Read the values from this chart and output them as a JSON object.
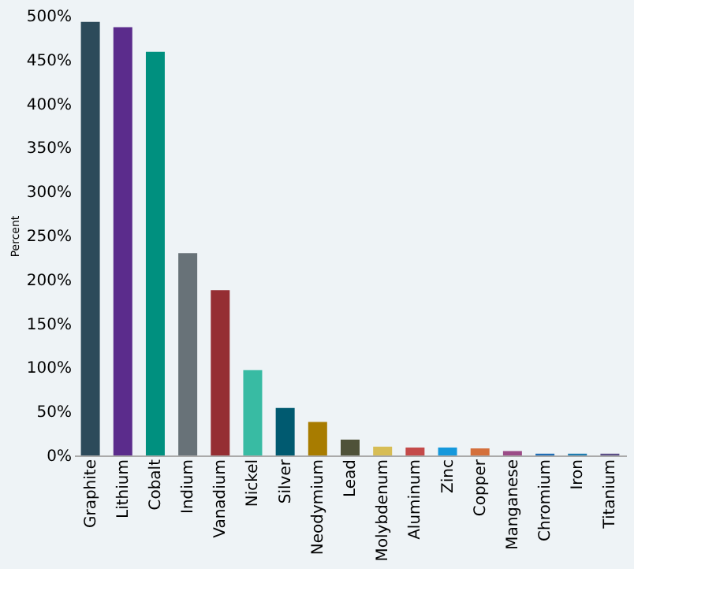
{
  "chart_data": {
    "type": "bar",
    "ylabel": "Percent",
    "categories": [
      "Graphite",
      "Lithium",
      "Cobalt",
      "Indium",
      "Vanadium",
      "Nickel",
      "Silver",
      "Neodymium",
      "Lead",
      "Molybdenum",
      "Aluminum",
      "Zinc",
      "Copper",
      "Manganese",
      "Chromium",
      "Iron",
      "Titanium"
    ],
    "values": [
      493,
      487,
      459,
      230,
      188,
      97,
      54,
      38,
      18,
      10,
      9,
      9,
      8,
      5,
      2,
      2,
      2
    ],
    "colors": [
      "#2c4a5a",
      "#5b2c8c",
      "#00907f",
      "#687278",
      "#952e33",
      "#38bba3",
      "#005a70",
      "#a87c00",
      "#4f5239",
      "#d7bd55",
      "#c44a4a",
      "#1598dc",
      "#d4703c",
      "#9b4b87",
      "#1f6db5",
      "#1e7cb0",
      "#5b4f87"
    ],
    "ylim": [
      0,
      500
    ],
    "yticks": [
      {
        "value": 0,
        "label": "0%"
      },
      {
        "value": 50,
        "label": "50%"
      },
      {
        "value": 100,
        "label": "100%"
      },
      {
        "value": 150,
        "label": "150%"
      },
      {
        "value": 200,
        "label": "200%"
      },
      {
        "value": 250,
        "label": "250%"
      },
      {
        "value": 300,
        "label": "300%"
      },
      {
        "value": 350,
        "label": "350%"
      },
      {
        "value": 400,
        "label": "400%"
      },
      {
        "value": 450,
        "label": "450%"
      },
      {
        "value": 500,
        "label": "500%"
      }
    ],
    "grid": false
  }
}
